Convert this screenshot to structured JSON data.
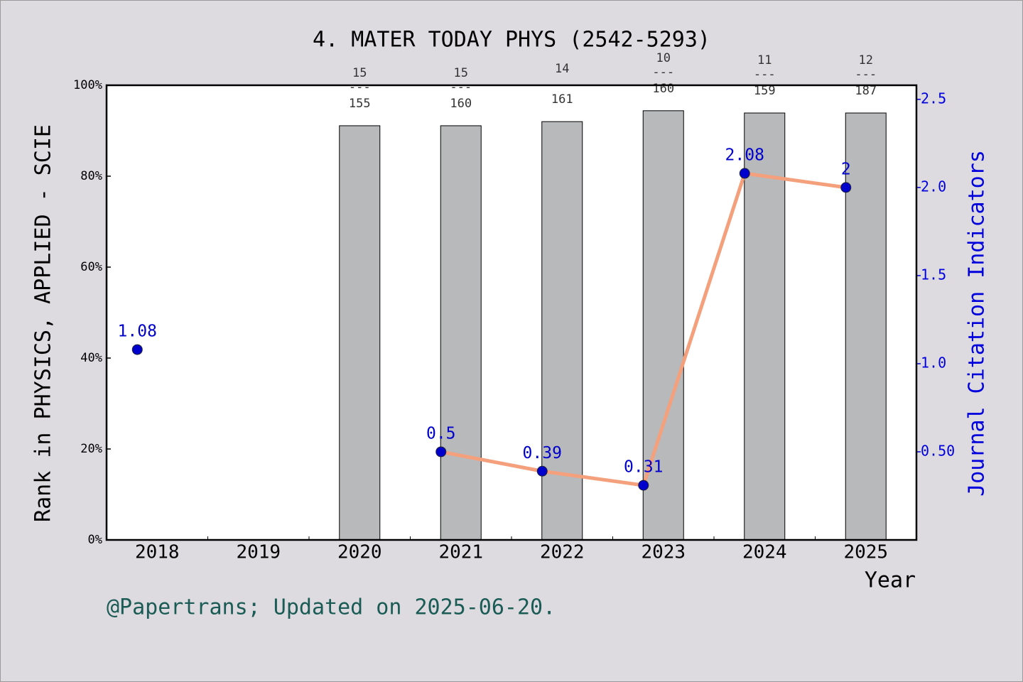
{
  "chart_data": {
    "type": "bar",
    "title": "4. MATER TODAY PHYS (2542-5293)",
    "x_label": "Year",
    "y_label": "Rank in PHYSICS, APPLIED - SCIE",
    "y2_label": "Journal Citation Indicators",
    "footer": "@Papertrans; Updated on 2025-06-20.",
    "categories": [
      "2018",
      "2019",
      "2020",
      "2021",
      "2022",
      "2023",
      "2024",
      "2025"
    ],
    "series": [
      {
        "type": "bar",
        "color": "#b8b9bb",
        "values": [
          null,
          null,
          91.1,
          91.1,
          92.0,
          94.4,
          93.9,
          93.9
        ]
      },
      {
        "type": "line",
        "axis": "y2",
        "color": "#f4a07c",
        "marker_color": "#0000cc",
        "label_color": "#0000cc",
        "values": [
          1.08,
          null,
          null,
          0.5,
          0.39,
          0.31,
          2.08,
          2
        ]
      }
    ],
    "bar_labels": [
      null,
      null,
      {
        "rank": "15",
        "separator": "---",
        "total": "155"
      },
      {
        "rank": "15",
        "separator": "---",
        "total": "160"
      },
      {
        "rank": "14",
        "total": "161"
      },
      {
        "rank": "10",
        "separator": "---",
        "total": "160"
      },
      {
        "rank": "11",
        "separator": "---",
        "total": "159"
      },
      {
        "rank": "12",
        "separator": "---",
        "total": "187"
      }
    ],
    "ylim": [
      0,
      100
    ],
    "yticks": [
      {
        "value": 0,
        "label": "0%"
      },
      {
        "value": 20,
        "label": "20%"
      },
      {
        "value": 40,
        "label": "40%"
      },
      {
        "value": 60,
        "label": "60%"
      },
      {
        "value": 80,
        "label": "80%"
      },
      {
        "value": 100,
        "label": "100%"
      }
    ],
    "y2lim": [
      0,
      2.58
    ],
    "y2ticks": [
      {
        "value": 0.5,
        "label": "0.50"
      },
      {
        "value": 1,
        "label": "1.0"
      },
      1.5,
      {
        "value": 2,
        "label": "2.0"
      },
      2.5
    ],
    "y2_color": "#0000dd"
  }
}
